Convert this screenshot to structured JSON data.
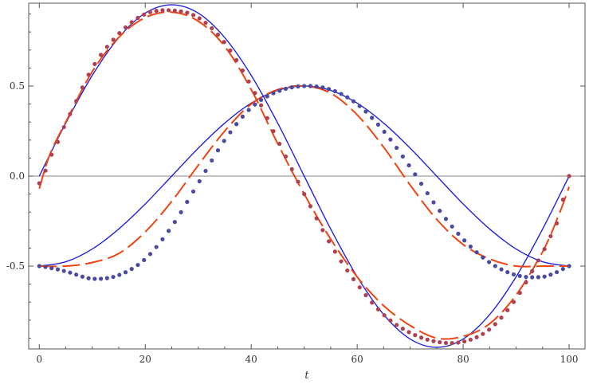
{
  "chart_data": {
    "type": "line",
    "title": "",
    "xlabel": "t",
    "ylabel": "",
    "xlim": [
      -2,
      103
    ],
    "ylim": [
      -0.96,
      0.96
    ],
    "x_ticks": [
      0,
      20,
      40,
      60,
      80,
      100
    ],
    "y_ticks": [
      -0.5,
      0.0,
      0.5
    ],
    "x_tick_labels": [
      "0",
      "20",
      "40",
      "60",
      "80",
      "100"
    ],
    "y_tick_labels": [
      "-0.5",
      "0.0",
      "0.5"
    ],
    "grid": false,
    "zero_line": true,
    "legend": "none",
    "colors": {
      "solid": "#2222dd",
      "dashed": "#ee4411",
      "dots_blue": "#4a4aa0",
      "dots_red": "#b04050",
      "zero_line": "#888888",
      "frame": "#555555"
    },
    "series": [
      {
        "style": "solid",
        "color": "#2222dd",
        "x": [
          0,
          5,
          10,
          15,
          20,
          25,
          30,
          35,
          40,
          45,
          50,
          55,
          60,
          65,
          70,
          75,
          80,
          85,
          90,
          95,
          100
        ],
        "y": [
          0,
          0.294,
          0.559,
          0.769,
          0.905,
          0.951,
          0.905,
          0.769,
          0.559,
          0.294,
          0,
          -0.294,
          -0.559,
          -0.769,
          -0.905,
          -0.951,
          -0.905,
          -0.769,
          -0.559,
          -0.294,
          0
        ]
      },
      {
        "style": "solid",
        "color": "#2222dd",
        "x": [
          0,
          5,
          10,
          15,
          20,
          25,
          30,
          35,
          40,
          45,
          50,
          55,
          60,
          65,
          70,
          75,
          80,
          85,
          90,
          95,
          100
        ],
        "y": [
          -0.5,
          -0.476,
          -0.405,
          -0.294,
          -0.155,
          0,
          0.155,
          0.294,
          0.405,
          0.476,
          0.5,
          0.476,
          0.405,
          0.294,
          0.155,
          0,
          -0.155,
          -0.294,
          -0.405,
          -0.476,
          -0.5
        ]
      },
      {
        "style": "dashed",
        "color": "#ee4411",
        "x": [
          0,
          2,
          5,
          10,
          15,
          20,
          25,
          30,
          35,
          40,
          45,
          50,
          55,
          60,
          65,
          70,
          75,
          80,
          85,
          90,
          95,
          98,
          100
        ],
        "y": [
          -0.07,
          0.12,
          0.3,
          0.58,
          0.77,
          0.88,
          0.91,
          0.86,
          0.72,
          0.48,
          0.18,
          -0.1,
          -0.35,
          -0.56,
          -0.72,
          -0.83,
          -0.9,
          -0.89,
          -0.82,
          -0.66,
          -0.42,
          -0.22,
          -0.06
        ]
      },
      {
        "style": "dashed",
        "color": "#ee4411",
        "x": [
          0,
          5,
          10,
          15,
          20,
          25,
          30,
          35,
          40,
          45,
          50,
          55,
          60,
          65,
          70,
          75,
          80,
          85,
          90,
          95,
          100
        ],
        "y": [
          -0.5,
          -0.5,
          -0.48,
          -0.43,
          -0.31,
          -0.14,
          0.06,
          0.25,
          0.4,
          0.48,
          0.5,
          0.46,
          0.34,
          0.16,
          -0.05,
          -0.24,
          -0.38,
          -0.46,
          -0.5,
          -0.5,
          -0.5
        ]
      },
      {
        "style": "dots",
        "color": "#b04050",
        "x": [
          0,
          2,
          5,
          10,
          15,
          20,
          25,
          30,
          35,
          40,
          45,
          50,
          55,
          60,
          65,
          70,
          75,
          80,
          85,
          90,
          95,
          98,
          100
        ],
        "y": [
          -0.04,
          0.1,
          0.3,
          0.6,
          0.79,
          0.9,
          0.92,
          0.88,
          0.74,
          0.5,
          0.2,
          -0.1,
          -0.38,
          -0.6,
          -0.77,
          -0.87,
          -0.92,
          -0.92,
          -0.85,
          -0.68,
          -0.43,
          -0.24,
          0
        ]
      },
      {
        "style": "dots",
        "color": "#4a4aa0",
        "x": [
          0,
          2,
          5,
          10,
          15,
          20,
          25,
          30,
          35,
          40,
          45,
          50,
          55,
          60,
          65,
          70,
          75,
          80,
          85,
          90,
          95,
          98,
          100
        ],
        "y": [
          -0.5,
          -0.51,
          -0.53,
          -0.57,
          -0.55,
          -0.46,
          -0.28,
          -0.04,
          0.2,
          0.38,
          0.47,
          0.5,
          0.48,
          0.4,
          0.25,
          0.05,
          -0.17,
          -0.35,
          -0.48,
          -0.55,
          -0.56,
          -0.53,
          -0.5
        ]
      }
    ]
  }
}
